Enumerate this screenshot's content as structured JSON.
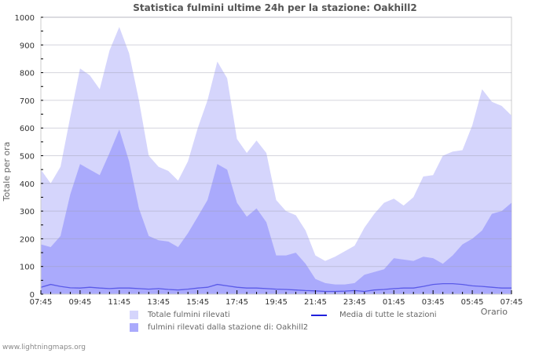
{
  "chart_data": {
    "type": "area",
    "title": "Statistica fulmini ultime 24h per la stazione: Oakhill2",
    "xlabel": "Orario",
    "ylabel": "Totale per ora",
    "ylim": [
      0,
      1000
    ],
    "y_ticks": [
      0,
      100,
      200,
      300,
      400,
      500,
      600,
      700,
      800,
      900,
      1000
    ],
    "x_tick_labels": [
      "07:45",
      "09:45",
      "11:45",
      "13:45",
      "15:45",
      "17:45",
      "19:45",
      "21:45",
      "23:45",
      "01:45",
      "03:45",
      "05:45",
      "07:45"
    ],
    "grid": true,
    "legend_position": "bottom",
    "x": [
      "07:45",
      "08:15",
      "08:45",
      "09:15",
      "09:45",
      "10:15",
      "10:45",
      "11:15",
      "11:45",
      "12:15",
      "12:45",
      "13:15",
      "13:45",
      "14:15",
      "14:45",
      "15:15",
      "15:45",
      "16:15",
      "16:45",
      "17:15",
      "17:45",
      "18:15",
      "18:45",
      "19:15",
      "19:45",
      "20:15",
      "20:45",
      "21:15",
      "21:45",
      "22:15",
      "22:45",
      "23:15",
      "23:45",
      "00:15",
      "00:45",
      "01:15",
      "01:45",
      "02:15",
      "02:45",
      "03:15",
      "03:45",
      "04:15",
      "04:45",
      "05:15",
      "05:45",
      "06:15",
      "06:45",
      "07:15",
      "07:45"
    ],
    "series": [
      {
        "name": "Totale fulmini rilevati",
        "type": "area",
        "color": "#d5d5fc",
        "values": [
          450,
          400,
          460,
          640,
          815,
          790,
          740,
          880,
          965,
          870,
          700,
          500,
          460,
          445,
          410,
          480,
          600,
          700,
          840,
          780,
          560,
          510,
          555,
          510,
          340,
          300,
          285,
          230,
          140,
          120,
          135,
          155,
          175,
          240,
          290,
          330,
          345,
          320,
          350,
          425,
          430,
          500,
          515,
          520,
          610,
          740,
          695,
          680,
          645
        ]
      },
      {
        "name": "fulmini rilevati dalla stazione di: Oakhill2",
        "type": "area",
        "color": "#aaaafc",
        "values": [
          180,
          170,
          210,
          360,
          470,
          450,
          430,
          510,
          595,
          480,
          310,
          210,
          195,
          190,
          170,
          220,
          280,
          340,
          470,
          450,
          330,
          280,
          310,
          260,
          140,
          140,
          150,
          110,
          55,
          40,
          35,
          35,
          40,
          70,
          80,
          90,
          130,
          125,
          120,
          135,
          130,
          110,
          140,
          180,
          200,
          230,
          290,
          300,
          330
        ]
      },
      {
        "name": "Media di tutte le stazioni",
        "type": "line",
        "color": "#2020dd",
        "values": [
          25,
          35,
          28,
          23,
          22,
          25,
          22,
          20,
          22,
          22,
          20,
          18,
          20,
          17,
          15,
          18,
          22,
          25,
          35,
          30,
          25,
          22,
          22,
          20,
          18,
          17,
          15,
          13,
          12,
          10,
          10,
          11,
          13,
          10,
          15,
          17,
          20,
          22,
          22,
          28,
          35,
          38,
          38,
          35,
          30,
          28,
          25,
          22,
          22
        ]
      }
    ]
  },
  "legend": {
    "total_label": "Totale fulmini rilevati",
    "station_label": "fulmini rilevati dalla stazione di: Oakhill2",
    "average_label": "Media di tutte le stazioni"
  },
  "colors": {
    "total": "#d5d5fc",
    "station": "#aaaafc",
    "average": "#2020dd",
    "grid": "#cccccc"
  },
  "footer": "www.lightningmaps.org"
}
